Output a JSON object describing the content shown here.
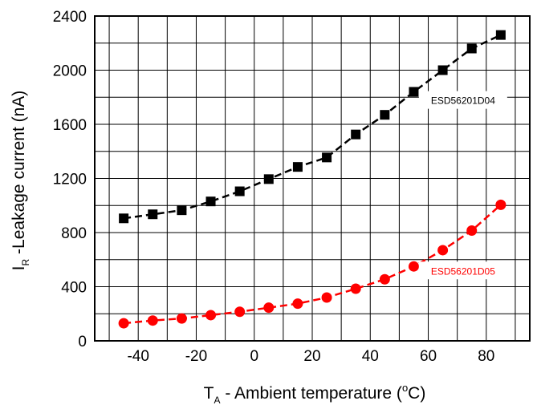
{
  "chart_data": {
    "type": "line",
    "title": "",
    "xlabel": {
      "main": "T",
      "sub": "A",
      "rest": " - Ambient temperature (",
      "degree": "o",
      "unit": "C)"
    },
    "ylabel": {
      "main": "I",
      "sub": "R",
      "rest": " -Leakage current (nA)"
    },
    "xlim": [
      -55,
      95
    ],
    "ylim": [
      0,
      2400
    ],
    "x_ticks": [
      -40,
      -20,
      0,
      20,
      40,
      60,
      80
    ],
    "x_tick_labels": [
      "-40",
      "-20",
      "0",
      "20",
      "40",
      "60",
      "80"
    ],
    "y_ticks": [
      0,
      400,
      800,
      1200,
      1600,
      2000,
      2400
    ],
    "y_tick_labels": [
      "0",
      "400",
      "800",
      "1200",
      "1600",
      "2000",
      "2400"
    ],
    "grid": true,
    "series": [
      {
        "name": "ESD56201D04",
        "color": "#000000",
        "marker": "square",
        "x": [
          -45,
          -35,
          -25,
          -15,
          -5,
          5,
          15,
          25,
          35,
          45,
          55,
          65,
          75,
          85
        ],
        "y": [
          905,
          935,
          965,
          1030,
          1105,
          1195,
          1285,
          1355,
          1525,
          1670,
          1840,
          2000,
          2160,
          2260
        ]
      },
      {
        "name": "ESD56201D05",
        "color": "#ff0000",
        "marker": "circle",
        "x": [
          -45,
          -35,
          -25,
          -15,
          -5,
          5,
          15,
          25,
          35,
          45,
          55,
          65,
          75,
          85
        ],
        "y": [
          130,
          150,
          165,
          190,
          215,
          245,
          275,
          320,
          385,
          455,
          550,
          670,
          815,
          1005
        ]
      }
    ]
  }
}
